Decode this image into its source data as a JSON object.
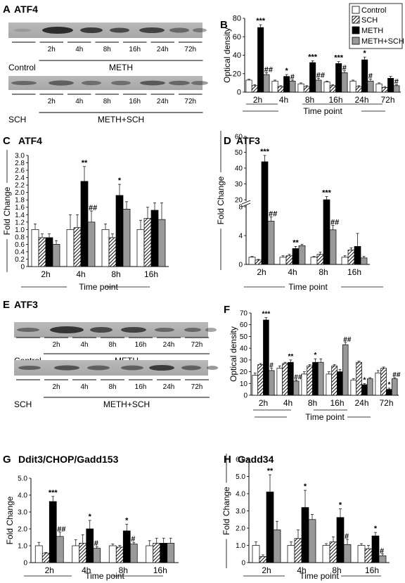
{
  "colors": {
    "control": "#ffffff",
    "sch": "hatched",
    "meth": "#000000",
    "methsch": "#999999"
  },
  "legend": [
    "Control",
    "SCH",
    "METH",
    "METH+SCH"
  ],
  "panels": {
    "A": {
      "letter": "A",
      "title": "ATF4",
      "strip1": {
        "first": "Control",
        "group": "METH",
        "times": [
          "2h",
          "4h",
          "8h",
          "16h",
          "24h",
          "72h"
        ]
      },
      "strip2": {
        "first": "SCH",
        "group": "METH+SCH",
        "times": [
          "2h",
          "4h",
          "8h",
          "16h",
          "24h",
          "72h"
        ]
      }
    },
    "E": {
      "letter": "E",
      "title": "ATF3",
      "strip1": {
        "first": "Control",
        "group": "METH",
        "times": [
          "2h",
          "4h",
          "8h",
          "16h",
          "24h",
          "72h"
        ]
      },
      "strip2": {
        "first": "SCH",
        "group": "METH+SCH",
        "times": [
          "2h",
          "4h",
          "8h",
          "16h",
          "24h",
          "72h"
        ]
      }
    }
  },
  "chart_data": [
    {
      "id": "B",
      "letter": "B",
      "type": "bar",
      "title": "",
      "xlabel": "Time point",
      "ylabel": "Optical density",
      "categories": [
        "2h",
        "4h",
        "8h",
        "16h",
        "24h",
        "72h"
      ],
      "ylim": [
        0,
        80
      ],
      "yticks": [
        0,
        20,
        40,
        60,
        80
      ],
      "series": [
        {
          "name": "Control",
          "values": [
            13,
            12,
            9,
            11,
            12,
            9
          ]
        },
        {
          "name": "SCH",
          "values": [
            7,
            6,
            6,
            7,
            6,
            5
          ]
        },
        {
          "name": "METH",
          "values": [
            70,
            17,
            32,
            31,
            35,
            15
          ]
        },
        {
          "name": "METH+SCH",
          "values": [
            19,
            12,
            13,
            21,
            12,
            7
          ]
        }
      ],
      "errors": [
        [
          1,
          1,
          1,
          1,
          1,
          1
        ],
        [
          1,
          1,
          1,
          1,
          1,
          1
        ],
        [
          3,
          2,
          2,
          2,
          3,
          2
        ],
        [
          2,
          1,
          2,
          2,
          2,
          1
        ]
      ],
      "annotations": [
        {
          "cat": 0,
          "s": 2,
          "text": "***"
        },
        {
          "cat": 0,
          "s": 3,
          "text": "##"
        },
        {
          "cat": 1,
          "s": 2,
          "text": "*"
        },
        {
          "cat": 1,
          "s": 3,
          "text": "#"
        },
        {
          "cat": 2,
          "s": 2,
          "text": "***"
        },
        {
          "cat": 2,
          "s": 3,
          "text": "##"
        },
        {
          "cat": 3,
          "s": 2,
          "text": "***"
        },
        {
          "cat": 3,
          "s": 3,
          "text": "#"
        },
        {
          "cat": 4,
          "s": 2,
          "text": "*"
        },
        {
          "cat": 4,
          "s": 3,
          "text": "#"
        },
        {
          "cat": 5,
          "s": 3,
          "text": "#"
        }
      ]
    },
    {
      "id": "C",
      "letter": "C",
      "type": "bar",
      "title": "ATF4",
      "xlabel": "Time point",
      "ylabel": "Fold Change",
      "categories": [
        "2h",
        "4h",
        "8h",
        "16h"
      ],
      "ylim": [
        0,
        3.0
      ],
      "yticks": [
        "0",
        "0.2",
        "0.4",
        "0.6",
        "0.8",
        "1.0",
        "1.2",
        "1.4",
        "1.6",
        "1.8",
        "2.0",
        "2.2",
        "2.4",
        "2.6",
        "2.8",
        "3.0"
      ],
      "series": [
        {
          "name": "Control",
          "values": [
            1.0,
            1.0,
            1.0,
            1.0
          ]
        },
        {
          "name": "SCH",
          "values": [
            0.78,
            1.05,
            0.78,
            1.3
          ]
        },
        {
          "name": "METH",
          "values": [
            0.78,
            2.3,
            1.92,
            1.52
          ]
        },
        {
          "name": "METH+SCH",
          "values": [
            0.6,
            1.2,
            1.55,
            1.27
          ]
        }
      ],
      "errors": [
        [
          0.15,
          0.4,
          0.15,
          0.25
        ],
        [
          0.1,
          0.35,
          0.1,
          0.3
        ],
        [
          0.1,
          0.4,
          0.3,
          0.2
        ],
        [
          0.1,
          0.3,
          0.2,
          0.45
        ]
      ],
      "annotations": [
        {
          "cat": 1,
          "s": 2,
          "text": "**"
        },
        {
          "cat": 1,
          "s": 3,
          "text": "##"
        },
        {
          "cat": 2,
          "s": 2,
          "text": "*"
        }
      ]
    },
    {
      "id": "D",
      "letter": "D",
      "type": "bar",
      "title": "ATF3",
      "xlabel": "Time point",
      "ylabel": "Fold Change",
      "categories": [
        "2h",
        "4h",
        "8h",
        "16h"
      ],
      "ylim": [
        0,
        60
      ],
      "yticks_upper": [
        20,
        30,
        40,
        50,
        60
      ],
      "yticks_lower": [
        0,
        4,
        8
      ],
      "series": [
        {
          "name": "Control",
          "values": [
            1,
            1,
            1,
            1
          ]
        },
        {
          "name": "SCH",
          "values": [
            0.6,
            1.2,
            1.4,
            2.0
          ]
        },
        {
          "name": "METH",
          "values": [
            44,
            2.2,
            20,
            2.5
          ]
        },
        {
          "name": "METH+SCH",
          "values": [
            6,
            2.6,
            4.8,
            0.9
          ]
        }
      ],
      "errors": [
        [
          0.1,
          0.2,
          0.1,
          0.2
        ],
        [
          0.1,
          0.2,
          0.3,
          0.3
        ],
        [
          4,
          0.3,
          2,
          1.8
        ],
        [
          0.6,
          0.2,
          0.6,
          0.2
        ]
      ],
      "annotations": [
        {
          "cat": 0,
          "s": 2,
          "text": "***"
        },
        {
          "cat": 0,
          "s": 3,
          "text": "##"
        },
        {
          "cat": 1,
          "s": 2,
          "text": "**"
        },
        {
          "cat": 2,
          "s": 2,
          "text": "***"
        },
        {
          "cat": 2,
          "s": 3,
          "text": "##"
        }
      ]
    },
    {
      "id": "F",
      "letter": "F",
      "type": "bar",
      "title": "",
      "xlabel": "Time point",
      "ylabel": "Optical density",
      "categories": [
        "2h",
        "4h",
        "8h",
        "16h",
        "24h",
        "72h"
      ],
      "ylim": [
        0,
        70
      ],
      "yticks": [
        0,
        10,
        20,
        30,
        40,
        50,
        60,
        70
      ],
      "series": [
        {
          "name": "Control",
          "values": [
            17,
            23,
            18,
            18,
            13,
            19
          ]
        },
        {
          "name": "SCH",
          "values": [
            26,
            27,
            25,
            25,
            28,
            23
          ]
        },
        {
          "name": "METH",
          "values": [
            64,
            28,
            28,
            20,
            9,
            5
          ]
        },
        {
          "name": "METH+SCH",
          "values": [
            21,
            12,
            28,
            43,
            14,
            14
          ]
        }
      ],
      "errors": [
        [
          2,
          2,
          2,
          2,
          1,
          2
        ],
        [
          1,
          1,
          1,
          1,
          1,
          1
        ],
        [
          2,
          2,
          3,
          2,
          1,
          1
        ],
        [
          2,
          1,
          3,
          2,
          1,
          1
        ]
      ],
      "annotations": [
        {
          "cat": 0,
          "s": 2,
          "text": "***"
        },
        {
          "cat": 0,
          "s": 3,
          "text": "#"
        },
        {
          "cat": 1,
          "s": 2,
          "text": "**"
        },
        {
          "cat": 1,
          "s": 3,
          "text": "##"
        },
        {
          "cat": 2,
          "s": 2,
          "text": "*"
        },
        {
          "cat": 3,
          "s": 3,
          "text": "##"
        },
        {
          "cat": 4,
          "s": 2,
          "text": "*"
        },
        {
          "cat": 5,
          "s": 2,
          "text": "*"
        },
        {
          "cat": 5,
          "s": 3,
          "text": "##"
        }
      ]
    },
    {
      "id": "G",
      "letter": "G",
      "type": "bar",
      "title": "Ddit3/CHOP/Gadd153",
      "xlabel": "Time point",
      "ylabel": "Fold Change",
      "categories": [
        "2h",
        "4h",
        "8h",
        "16h"
      ],
      "ylim": [
        0,
        5.0
      ],
      "yticks": [
        "0",
        "1.0",
        "2.0",
        "3.0",
        "4.0",
        "5.0"
      ],
      "series": [
        {
          "name": "Control",
          "values": [
            1.0,
            1.0,
            1.0,
            1.0
          ]
        },
        {
          "name": "SCH",
          "values": [
            0.55,
            1.15,
            0.92,
            1.15
          ]
        },
        {
          "name": "METH",
          "values": [
            3.62,
            2.0,
            1.88,
            1.15
          ]
        },
        {
          "name": "METH+SCH",
          "values": [
            1.55,
            0.85,
            1.1,
            1.15
          ]
        }
      ],
      "errors": [
        [
          0.2,
          0.35,
          0.1,
          0.3
        ],
        [
          0.05,
          0.5,
          0.1,
          0.3
        ],
        [
          0.3,
          0.5,
          0.4,
          0.3
        ],
        [
          0.25,
          0.1,
          0.1,
          0.3
        ]
      ],
      "annotations": [
        {
          "cat": 0,
          "s": 2,
          "text": "***"
        },
        {
          "cat": 0,
          "s": 3,
          "text": "##"
        },
        {
          "cat": 1,
          "s": 2,
          "text": "*"
        },
        {
          "cat": 1,
          "s": 3,
          "text": "#"
        },
        {
          "cat": 2,
          "s": 2,
          "text": "*"
        },
        {
          "cat": 2,
          "s": 3,
          "text": "#"
        }
      ]
    },
    {
      "id": "H",
      "letter": "H",
      "type": "bar",
      "title": "Gadd34",
      "xlabel": "Time point",
      "ylabel": "Fold Change",
      "categories": [
        "2h",
        "4h",
        "8h",
        "16h"
      ],
      "ylim": [
        0,
        6.0
      ],
      "yticks": [
        "0",
        "1.0",
        "2.0",
        "3.0",
        "4.0",
        "5.0",
        "6.0"
      ],
      "series": [
        {
          "name": "Control",
          "values": [
            1.0,
            1.0,
            1.0,
            1.0
          ]
        },
        {
          "name": "SCH",
          "values": [
            0.35,
            1.4,
            1.2,
            0.8
          ]
        },
        {
          "name": "METH",
          "values": [
            4.1,
            3.2,
            2.62,
            1.55
          ]
        },
        {
          "name": "METH+SCH",
          "values": [
            1.9,
            2.5,
            1.05,
            0.4
          ]
        }
      ],
      "errors": [
        [
          0.2,
          0.2,
          0.1,
          0.1
        ],
        [
          0.1,
          0.5,
          0.3,
          0.2
        ],
        [
          1.0,
          1.0,
          0.5,
          0.2
        ],
        [
          0.5,
          0.3,
          0.3,
          0.1
        ]
      ],
      "annotations": [
        {
          "cat": 0,
          "s": 2,
          "text": "**"
        },
        {
          "cat": 1,
          "s": 2,
          "text": "*"
        },
        {
          "cat": 2,
          "s": 2,
          "text": "*"
        },
        {
          "cat": 2,
          "s": 3,
          "text": "#"
        },
        {
          "cat": 3,
          "s": 2,
          "text": "*"
        },
        {
          "cat": 3,
          "s": 3,
          "text": "#"
        }
      ]
    }
  ]
}
